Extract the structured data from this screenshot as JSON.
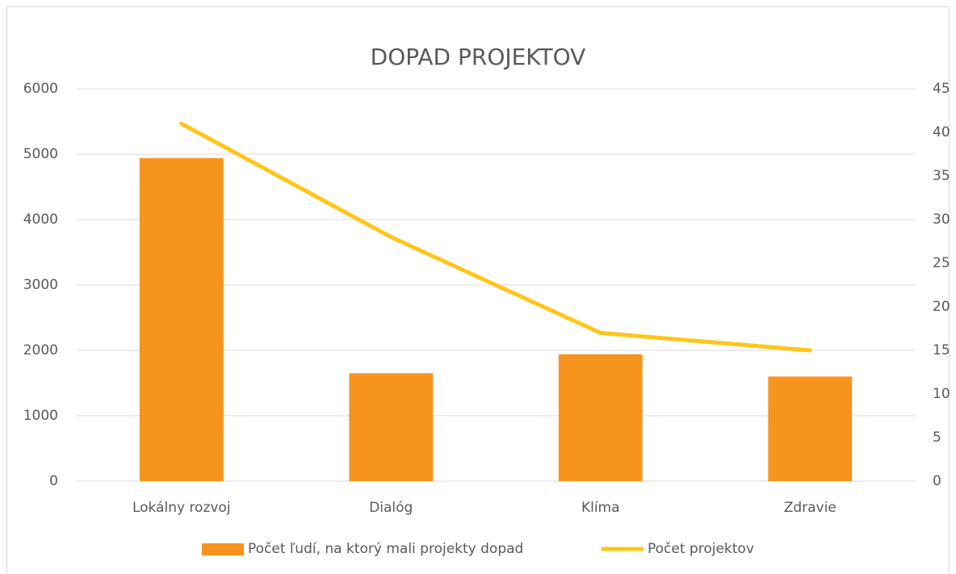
{
  "chart_data": {
    "type": "bar-line",
    "title": "DOPAD PROJEKTOV",
    "categories": [
      "Lokálny rozvoj",
      "Dialóg",
      "Klíma",
      "Zdravie"
    ],
    "series": [
      {
        "name": "Počet ľudí, na ktorý mali projekty dopad",
        "type": "bar",
        "color": "#f7941d",
        "values": [
          4940,
          1650,
          1940,
          1600
        ]
      },
      {
        "name": "Počet projektov",
        "type": "line",
        "axis": "y2",
        "color": "#ffc619",
        "values": [
          41,
          28,
          17,
          15
        ]
      }
    ],
    "ylim": [
      0,
      6000
    ],
    "yticks": [
      0,
      1000,
      2000,
      3000,
      4000,
      5000,
      6000
    ],
    "y2lim": [
      0,
      45
    ],
    "y2ticks": [
      0,
      5,
      10,
      15,
      20,
      25,
      30,
      35,
      40,
      45
    ],
    "grid": true,
    "legend": "bottom"
  }
}
